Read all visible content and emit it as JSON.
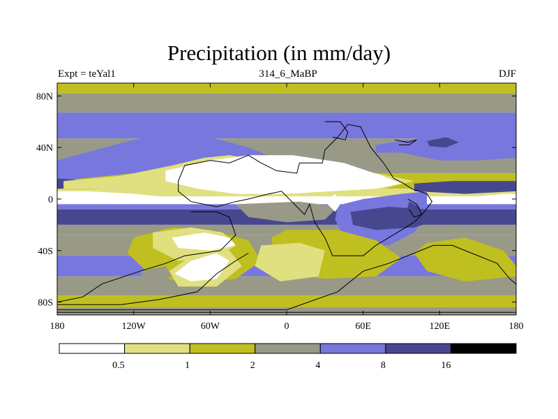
{
  "header": {
    "title": "Precipitation (in mm/day)",
    "left_label": "Expt = teYal1",
    "center_label": "314_6_MaBP",
    "right_label": "DJF"
  },
  "chart_data": {
    "type": "heatmap",
    "title": "Precipitation (in mm/day)",
    "xlabel": "",
    "ylabel": "",
    "xlim": [
      -180,
      180
    ],
    "ylim": [
      -90,
      90
    ],
    "x_ticks": [
      {
        "value": -180,
        "label": "180"
      },
      {
        "value": -120,
        "label": "120W"
      },
      {
        "value": -60,
        "label": "60W"
      },
      {
        "value": 0,
        "label": "0"
      },
      {
        "value": 60,
        "label": "60E"
      },
      {
        "value": 120,
        "label": "120E"
      },
      {
        "value": 180,
        "label": "180"
      }
    ],
    "y_ticks": [
      {
        "value": 80,
        "label": "80N"
      },
      {
        "value": 40,
        "label": "40N"
      },
      {
        "value": 0,
        "label": "0"
      },
      {
        "value": -40,
        "label": "40S"
      },
      {
        "value": -80,
        "label": "80S"
      }
    ],
    "colorbar": {
      "boundaries": [
        0.5,
        1,
        2,
        4,
        8,
        16
      ],
      "labels": [
        "0.5",
        "1",
        "2",
        "4",
        "8",
        "16"
      ],
      "colors": [
        "#ffffff",
        "#e0e080",
        "#bfbf20",
        "#999988",
        "#7777dd",
        "#474790",
        "#000000"
      ]
    },
    "zonal_bands": [
      {
        "lat_min": 82,
        "lat_max": 90,
        "level": 2
      },
      {
        "lat_min": 67,
        "lat_max": 82,
        "level": 3
      },
      {
        "lat_min": 47,
        "lat_max": 67,
        "level": 4
      },
      {
        "lat_min": 20,
        "lat_max": 47,
        "level": 3
      },
      {
        "lat_min": 8,
        "lat_max": 20,
        "level": 2
      },
      {
        "lat_min": 2,
        "lat_max": 8,
        "level": 1
      },
      {
        "lat_min": -4,
        "lat_max": 2,
        "level": 0
      },
      {
        "lat_min": -8,
        "lat_max": -4,
        "level": 4
      },
      {
        "lat_min": -20,
        "lat_max": -8,
        "level": 5
      },
      {
        "lat_min": -28,
        "lat_max": -20,
        "level": 3
      },
      {
        "lat_min": -44,
        "lat_max": -28,
        "level": 3
      },
      {
        "lat_min": -60,
        "lat_max": -44,
        "level": 4
      },
      {
        "lat_min": -75,
        "lat_max": -60,
        "level": 3
      },
      {
        "lat_min": -84,
        "lat_max": -75,
        "level": 2
      },
      {
        "lat_min": -90,
        "lat_max": -84,
        "level": 3
      }
    ],
    "regions": [
      {
        "level": 4,
        "points": [
          [
            -180,
            30
          ],
          [
            -150,
            38
          ],
          [
            -120,
            46
          ],
          [
            -90,
            52
          ],
          [
            -60,
            48
          ],
          [
            -30,
            40
          ],
          [
            -10,
            32
          ],
          [
            -40,
            24
          ],
          [
            -80,
            22
          ],
          [
            -120,
            20
          ],
          [
            -160,
            16
          ],
          [
            -180,
            14
          ]
        ]
      },
      {
        "level": 4,
        "points": [
          [
            70,
            42
          ],
          [
            110,
            48
          ],
          [
            150,
            52
          ],
          [
            180,
            50
          ],
          [
            180,
            32
          ],
          [
            150,
            30
          ],
          [
            120,
            30
          ],
          [
            90,
            36
          ],
          [
            70,
            36
          ]
        ]
      },
      {
        "level": 5,
        "points": [
          [
            110,
            45
          ],
          [
            125,
            48
          ],
          [
            135,
            44
          ],
          [
            125,
            40
          ],
          [
            112,
            41
          ]
        ]
      },
      {
        "level": 5,
        "points": [
          [
            -180,
            16
          ],
          [
            -150,
            14
          ],
          [
            -120,
            10
          ],
          [
            -150,
            8
          ],
          [
            -180,
            8
          ]
        ]
      },
      {
        "level": 5,
        "points": [
          [
            100,
            12
          ],
          [
            130,
            14
          ],
          [
            180,
            14
          ],
          [
            180,
            6
          ],
          [
            140,
            4
          ],
          [
            100,
            6
          ]
        ]
      },
      {
        "level": 4,
        "points": [
          [
            40,
            -5
          ],
          [
            60,
            0
          ],
          [
            90,
            4
          ],
          [
            110,
            6
          ],
          [
            110,
            -12
          ],
          [
            100,
            -26
          ],
          [
            80,
            -36
          ],
          [
            60,
            -38
          ],
          [
            45,
            -30
          ],
          [
            38,
            -16
          ]
        ]
      },
      {
        "level": 5,
        "points": [
          [
            50,
            -10
          ],
          [
            80,
            -6
          ],
          [
            110,
            -8
          ],
          [
            120,
            -16
          ],
          [
            100,
            -22
          ],
          [
            70,
            -24
          ],
          [
            52,
            -20
          ]
        ]
      },
      {
        "level": 5,
        "points": [
          [
            96,
            -2
          ],
          [
            104,
            -6
          ],
          [
            106,
            -12
          ],
          [
            100,
            -16
          ],
          [
            94,
            -10
          ]
        ]
      },
      {
        "level": 3,
        "points": [
          [
            -40,
            -4
          ],
          [
            10,
            -2
          ],
          [
            40,
            -6
          ],
          [
            30,
            -16
          ],
          [
            0,
            -18
          ],
          [
            -30,
            -14
          ]
        ]
      },
      {
        "level": 2,
        "points": [
          [
            -120,
            -30
          ],
          [
            -90,
            -22
          ],
          [
            -60,
            -24
          ],
          [
            -30,
            -32
          ],
          [
            -20,
            -48
          ],
          [
            -40,
            -62
          ],
          [
            -80,
            -66
          ],
          [
            -110,
            -56
          ],
          [
            -125,
            -42
          ]
        ]
      },
      {
        "level": 2,
        "points": [
          [
            0,
            -24
          ],
          [
            40,
            -24
          ],
          [
            70,
            -32
          ],
          [
            90,
            -46
          ],
          [
            70,
            -60
          ],
          [
            30,
            -62
          ],
          [
            5,
            -58
          ],
          [
            -10,
            -44
          ],
          [
            -12,
            -30
          ]
        ]
      },
      {
        "level": 2,
        "points": [
          [
            110,
            -34
          ],
          [
            140,
            -30
          ],
          [
            170,
            -40
          ],
          [
            180,
            -52
          ],
          [
            180,
            -60
          ],
          [
            140,
            -64
          ],
          [
            110,
            -56
          ],
          [
            100,
            -42
          ]
        ]
      },
      {
        "level": 1,
        "points": [
          [
            -105,
            -26
          ],
          [
            -75,
            -22
          ],
          [
            -50,
            -26
          ],
          [
            -40,
            -36
          ],
          [
            -55,
            -46
          ],
          [
            -85,
            -48
          ],
          [
            -105,
            -38
          ]
        ]
      },
      {
        "level": 1,
        "points": [
          [
            -75,
            -44
          ],
          [
            -45,
            -40
          ],
          [
            -35,
            -52
          ],
          [
            -55,
            -68
          ],
          [
            -85,
            -68
          ],
          [
            -92,
            -56
          ]
        ]
      },
      {
        "level": 1,
        "points": [
          [
            -20,
            -36
          ],
          [
            10,
            -34
          ],
          [
            30,
            -40
          ],
          [
            25,
            -60
          ],
          [
            -5,
            -64
          ],
          [
            -25,
            -52
          ]
        ]
      },
      {
        "level": 1,
        "points": [
          [
            -175,
            14
          ],
          [
            -130,
            18
          ],
          [
            -90,
            26
          ],
          [
            -65,
            32
          ],
          [
            -45,
            34
          ],
          [
            -20,
            30
          ],
          [
            20,
            28
          ],
          [
            50,
            24
          ],
          [
            80,
            18
          ],
          [
            100,
            14
          ],
          [
            75,
            8
          ],
          [
            40,
            6
          ],
          [
            0,
            6
          ],
          [
            -50,
            6
          ],
          [
            -100,
            8
          ],
          [
            -175,
            8
          ]
        ]
      },
      {
        "level": 1,
        "points": [
          [
            -45,
            26
          ],
          [
            0,
            26
          ],
          [
            40,
            18
          ],
          [
            65,
            14
          ],
          [
            40,
            8
          ],
          [
            0,
            8
          ],
          [
            -40,
            10
          ],
          [
            -55,
            18
          ]
        ]
      },
      {
        "level": 0,
        "points": [
          [
            -95,
            22
          ],
          [
            -60,
            30
          ],
          [
            -30,
            34
          ],
          [
            5,
            34
          ],
          [
            45,
            28
          ],
          [
            75,
            18
          ],
          [
            90,
            12
          ],
          [
            70,
            8
          ],
          [
            35,
            6
          ],
          [
            0,
            4
          ],
          [
            -40,
            4
          ],
          [
            -70,
            8
          ],
          [
            -95,
            14
          ]
        ]
      },
      {
        "level": 0,
        "points": [
          [
            -180,
            6
          ],
          [
            -155,
            6
          ],
          [
            -120,
            4
          ],
          [
            -100,
            2
          ],
          [
            -120,
            -2
          ],
          [
            -160,
            -2
          ],
          [
            -180,
            -2
          ]
        ]
      },
      {
        "level": 0,
        "points": [
          [
            150,
            2
          ],
          [
            170,
            4
          ],
          [
            180,
            4
          ],
          [
            180,
            -2
          ],
          [
            160,
            -2
          ],
          [
            150,
            0
          ]
        ]
      },
      {
        "level": 0,
        "points": [
          [
            -90,
            -30
          ],
          [
            -65,
            -26
          ],
          [
            -45,
            -30
          ],
          [
            -40,
            -36
          ],
          [
            -60,
            -40
          ],
          [
            -85,
            -38
          ]
        ]
      },
      {
        "level": 0,
        "points": [
          [
            -75,
            -48
          ],
          [
            -55,
            -42
          ],
          [
            -45,
            -48
          ],
          [
            -55,
            -62
          ],
          [
            -75,
            -64
          ],
          [
            -88,
            -58
          ]
        ]
      },
      {
        "level": 0,
        "points": [
          [
            30,
            -2
          ],
          [
            38,
            4
          ],
          [
            42,
            -4
          ],
          [
            38,
            -10
          ]
        ]
      },
      {
        "level": 3,
        "points": [
          [
            -115,
            -56
          ],
          [
            -95,
            -52
          ],
          [
            -90,
            -60
          ],
          [
            -110,
            -66
          ]
        ]
      }
    ],
    "coastlines": [
      [
        [
          -80,
          26
        ],
        [
          -60,
          30
        ],
        [
          -45,
          28
        ],
        [
          -30,
          34
        ],
        [
          -20,
          28
        ],
        [
          -8,
          22
        ],
        [
          8,
          20
        ],
        [
          10,
          28
        ],
        [
          28,
          28
        ],
        [
          30,
          38
        ],
        [
          40,
          48
        ],
        [
          48,
          58
        ],
        [
          58,
          56
        ],
        [
          62,
          48
        ],
        [
          66,
          40
        ],
        [
          76,
          28
        ],
        [
          84,
          16
        ],
        [
          92,
          12
        ],
        [
          98,
          8
        ],
        [
          110,
          4
        ],
        [
          114,
          -2
        ],
        [
          108,
          -10
        ],
        [
          100,
          -18
        ],
        [
          90,
          -24
        ],
        [
          70,
          -36
        ],
        [
          60,
          -44
        ],
        [
          36,
          -44
        ],
        [
          30,
          -30
        ],
        [
          22,
          -18
        ],
        [
          18,
          -4
        ],
        [
          14,
          -12
        ],
        [
          6,
          -4
        ],
        [
          -4,
          6
        ],
        [
          -14,
          4
        ],
        [
          -30,
          0
        ],
        [
          -40,
          -2
        ],
        [
          -55,
          -6
        ],
        [
          -75,
          -2
        ],
        [
          -85,
          6
        ],
        [
          -85,
          14
        ],
        [
          -80,
          26
        ]
      ],
      [
        [
          -75,
          -10
        ],
        [
          -55,
          -10
        ],
        [
          -45,
          -14
        ],
        [
          -40,
          -28
        ],
        [
          -52,
          -40
        ],
        [
          -80,
          -44
        ],
        [
          -95,
          -50
        ],
        [
          -115,
          -56
        ],
        [
          -145,
          -66
        ],
        [
          -160,
          -76
        ],
        [
          -180,
          -80
        ]
      ],
      [
        [
          -180,
          -82
        ],
        [
          -130,
          -82
        ],
        [
          -100,
          -78
        ],
        [
          -70,
          -72
        ],
        [
          -55,
          -58
        ],
        [
          -40,
          -48
        ],
        [
          -30,
          -42
        ]
      ],
      [
        [
          -180,
          -86
        ],
        [
          -60,
          -86
        ],
        [
          0,
          -86
        ],
        [
          40,
          -72
        ],
        [
          60,
          -56
        ],
        [
          80,
          -50
        ],
        [
          100,
          -42
        ],
        [
          115,
          -36
        ],
        [
          130,
          -36
        ],
        [
          145,
          -42
        ],
        [
          165,
          -50
        ],
        [
          175,
          -62
        ],
        [
          180,
          -66
        ]
      ],
      [
        [
          -180,
          -88
        ],
        [
          180,
          -88
        ]
      ],
      [
        [
          30,
          60
        ],
        [
          42,
          60
        ],
        [
          48,
          52
        ],
        [
          46,
          46
        ],
        [
          36,
          48
        ]
      ],
      [
        [
          85,
          46
        ],
        [
          95,
          44
        ],
        [
          102,
          46
        ],
        [
          96,
          42
        ],
        [
          88,
          42
        ]
      ],
      [
        [
          95,
          0
        ],
        [
          102,
          -4
        ],
        [
          106,
          -12
        ],
        [
          100,
          -14
        ],
        [
          96,
          -8
        ]
      ]
    ]
  }
}
